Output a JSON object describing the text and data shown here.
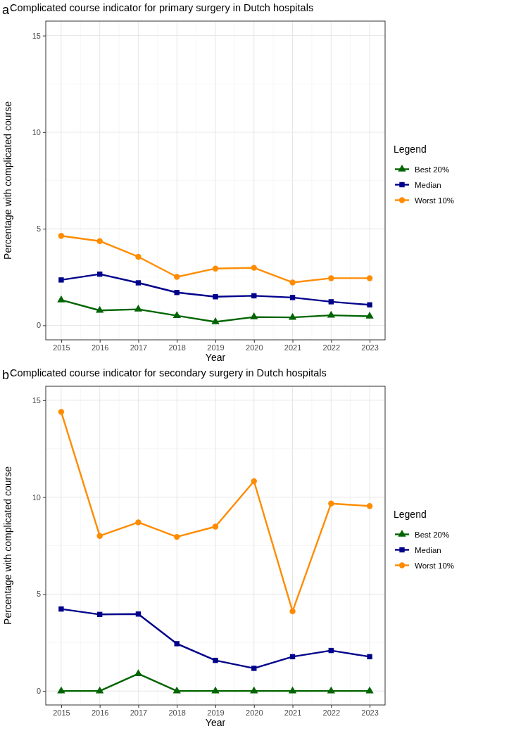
{
  "chart_data": [
    {
      "type": "line",
      "title": "Complicated course indicator for primary surgery in Dutch hospitals",
      "xlabel": "Year",
      "ylabel": "Percentage with complicated course",
      "legend_title": "Legend",
      "annotations": [
        "a"
      ],
      "x": [
        2015,
        2016,
        2017,
        2018,
        2019,
        2020,
        2021,
        2022,
        2023
      ],
      "xlim": [
        2014.6,
        2023.4
      ],
      "xticks": [
        2015,
        2016,
        2017,
        2018,
        2019,
        2020,
        2021,
        2022,
        2023
      ],
      "ylim": [
        -0.75,
        15.75
      ],
      "yticks": [
        0,
        5,
        10,
        15
      ],
      "grid": true,
      "legend": "right",
      "line_style": "solid",
      "series": [
        {
          "name": "Best 20%",
          "color": "#006400",
          "marker": "triangle",
          "values": [
            1.31,
            0.77,
            0.83,
            0.5,
            0.18,
            0.43,
            0.41,
            0.52,
            0.47
          ]
        },
        {
          "name": "Median",
          "color": "#00008b",
          "marker": "square",
          "values": [
            2.35,
            2.65,
            2.2,
            1.7,
            1.48,
            1.53,
            1.44,
            1.22,
            1.06
          ]
        },
        {
          "name": "Worst 10%",
          "color": "#ff8c00",
          "marker": "circle",
          "values": [
            4.63,
            4.36,
            3.55,
            2.51,
            2.94,
            2.98,
            2.22,
            2.44,
            2.44
          ]
        }
      ]
    },
    {
      "type": "line",
      "title": "Complicated course indicator for secondary surgery in Dutch hospitals",
      "xlabel": "Year",
      "ylabel": "Percentage with complicated course",
      "legend_title": "Legend",
      "annotations": [
        "b"
      ],
      "x": [
        2015,
        2016,
        2017,
        2018,
        2019,
        2020,
        2021,
        2022,
        2023
      ],
      "xlim": [
        2014.6,
        2023.4
      ],
      "xticks": [
        2015,
        2016,
        2017,
        2018,
        2019,
        2020,
        2021,
        2022,
        2023
      ],
      "ylim": [
        -0.72,
        15.72
      ],
      "yticks": [
        0,
        5,
        10,
        15
      ],
      "grid": true,
      "legend": "right",
      "line_style": "solid",
      "series": [
        {
          "name": "Best 20%",
          "color": "#006400",
          "marker": "triangle",
          "values": [
            0,
            0,
            0.89,
            0,
            0,
            0,
            0,
            0,
            0
          ]
        },
        {
          "name": "Median",
          "color": "#00008b",
          "marker": "square",
          "values": [
            4.23,
            3.95,
            3.97,
            2.44,
            1.58,
            1.17,
            1.77,
            2.09,
            1.77
          ]
        },
        {
          "name": "Worst 10%",
          "color": "#ff8c00",
          "marker": "circle",
          "values": [
            14.4,
            8.0,
            8.7,
            7.95,
            8.48,
            10.82,
            4.11,
            9.67,
            9.54
          ]
        }
      ]
    }
  ]
}
